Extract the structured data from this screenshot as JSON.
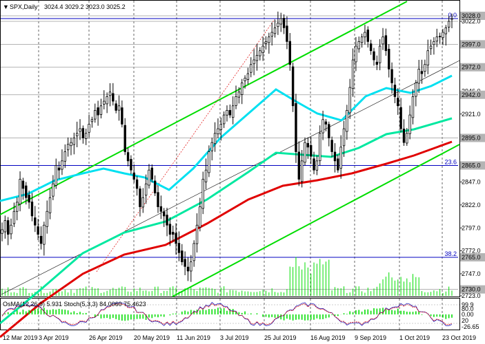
{
  "header": {
    "symbol": "SPX,Daily",
    "ohlc": "3024.4 3029.2 3023.0 3025.2"
  },
  "indicator_header": "OsMA(12,26,9) 5.931 Stoch(5,3,3) 84.0060 75.4623",
  "colors": {
    "background": "#ffffff",
    "candle": "#000000",
    "ema_fast": "#00e0f0",
    "ema_mid": "#00e8a0",
    "ema_slow": "#e00000",
    "channel": "#00dd00",
    "fibo": "#0000c0",
    "volume": "#00dd00",
    "osma": "#00dd00",
    "stoch_main": "#2020c0",
    "stoch_signal": "#e00000",
    "trend_red": "#e00000"
  },
  "chart_data": {
    "type": "candlestick",
    "title": "SPX,Daily",
    "ylim": [
      2723,
      3040
    ],
    "y_ticks": [
      3028.0,
      3022.0,
      2997.0,
      2972.0,
      2946.0,
      2942.0,
      2921.0,
      2895.0,
      2865.0,
      2847.0,
      2822.0,
      2797.0,
      2772.0,
      2765.0,
      2747.0,
      2730.0,
      2723.0
    ],
    "y_tick_labels": [
      "3028.0",
      "3022.0",
      "2997.0",
      "2972.0",
      "2946.0",
      "2942.0",
      "2921.0",
      "2895.0",
      "2865.0",
      "2847.0",
      "2822.0",
      "2797.0",
      "2772.0",
      "2765.0",
      "2747.0",
      "2730.0",
      "2723.0"
    ],
    "highlighted_levels": [
      "3028.0",
      "2997.0",
      "2972.0",
      "2942.0",
      "2895.0",
      "2865.0",
      "2765.0",
      "2730.0"
    ],
    "x_labels": [
      "12 Mar 2019",
      "3 Apr 2019",
      "26 Apr 2019",
      "20 May 2019",
      "11 Jun 2019",
      "3 Jul 2019",
      "25 Jul 2019",
      "16 Aug 2019",
      "9 Sep 2019",
      "1 Oct 2019",
      "23 Oct 2019"
    ],
    "fibo_levels": [
      {
        "label": "0.0",
        "value": 3030.0
      },
      {
        "label": "23.6",
        "value": 2865.0
      },
      {
        "label": "38.2",
        "value": 2765.0
      }
    ],
    "close_approx": [
      2795,
      2805,
      2790,
      2800,
      2815,
      2825,
      2850,
      2840,
      2830,
      2825,
      2810,
      2800,
      2790,
      2780,
      2800,
      2815,
      2830,
      2845,
      2865,
      2860,
      2870,
      2880,
      2888,
      2890,
      2895,
      2900,
      2905,
      2895,
      2900,
      2910,
      2915,
      2925,
      2920,
      2930,
      2935,
      2940,
      2945,
      2935,
      2925,
      2930,
      2910,
      2880,
      2870,
      2860,
      2850,
      2840,
      2820,
      2830,
      2845,
      2860,
      2850,
      2835,
      2820,
      2815,
      2810,
      2800,
      2790,
      2790,
      2780,
      2770,
      2760,
      2755,
      2750,
      2760,
      2780,
      2800,
      2820,
      2850,
      2860,
      2880,
      2890,
      2900,
      2905,
      2910,
      2920,
      2925,
      2920,
      2930,
      2940,
      2945,
      2955,
      2960,
      2965,
      2975,
      2980,
      2985,
      2990,
      2995,
      3000,
      3005,
      3010,
      3015,
      3020,
      3025,
      3015,
      3000,
      2975,
      2930,
      2880,
      2850,
      2870,
      2890,
      2885,
      2875,
      2860,
      2870,
      2900,
      2915,
      2910,
      2895,
      2880,
      2870,
      2860,
      2885,
      2905,
      2925,
      2950,
      2980,
      2995,
      3000,
      3005,
      3010,
      3000,
      2990,
      2980,
      2975,
      2995,
      3005,
      2990,
      2970,
      2955,
      2940,
      2930,
      2905,
      2890,
      2900,
      2920,
      2940,
      2955,
      2970,
      2965,
      2975,
      2990,
      2995,
      3000,
      3005,
      3005,
      3010,
      3015,
      3022,
      3025
    ],
    "ema_fast_last": 2960,
    "ema_mid_last": 2918,
    "ema_slow_last": 2890,
    "volume_note": "volume histogram",
    "series": [
      {
        "name": "OsMA(12,26,9)",
        "last": 5.931
      },
      {
        "name": "Stoch main",
        "last": 84.006
      },
      {
        "name": "Stoch signal",
        "last": 75.4623
      }
    ],
    "indicator_axis_labels": [
      "99.9",
      "80.0",
      "0.00",
      "20",
      "-26.65"
    ]
  }
}
